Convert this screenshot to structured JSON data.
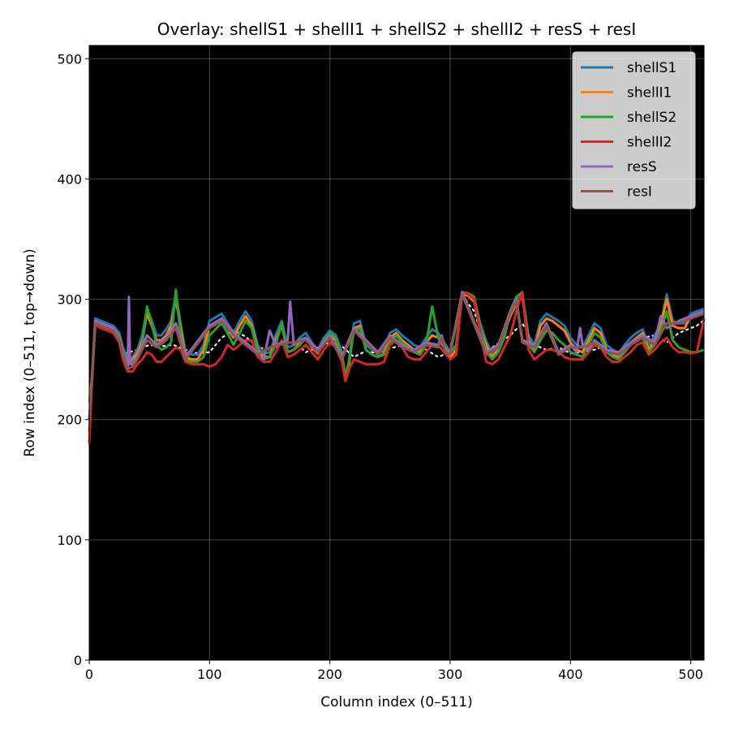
{
  "chart_data": {
    "type": "line",
    "title": "Overlay: shellS1 + shellI1 + shellS2 + shellI2 + resS + resI",
    "xlabel": "Column index (0–511)",
    "ylabel": "Row index (0–511, top→down)",
    "xlim": [
      0,
      511
    ],
    "ylim": [
      0,
      511
    ],
    "xticks": [
      0,
      100,
      200,
      300,
      400,
      500
    ],
    "yticks": [
      0,
      100,
      200,
      300,
      400,
      500
    ],
    "grid": true,
    "background": "#000000",
    "legend": {
      "location": "top-right"
    },
    "white_trace": {
      "x": [
        5,
        20,
        30,
        40,
        50,
        60,
        70,
        80,
        90,
        100,
        110,
        120,
        130,
        140,
        150,
        160,
        170,
        180,
        190,
        200,
        210,
        220,
        230,
        240,
        250,
        260,
        270,
        280,
        290,
        300,
        310,
        320,
        330,
        340,
        350,
        360,
        370,
        380,
        390,
        400,
        410,
        420,
        430,
        440,
        450,
        460,
        470,
        480,
        490,
        500,
        505,
        510
      ],
      "y": [
        280,
        276,
        255,
        258,
        262,
        261,
        262,
        258,
        255,
        256,
        268,
        274,
        269,
        260,
        258,
        262,
        265,
        256,
        260,
        264,
        261,
        252,
        257,
        255,
        259,
        262,
        258,
        258,
        252,
        256,
        303,
        290,
        257,
        263,
        270,
        280,
        262,
        258,
        260,
        255,
        256,
        258,
        262,
        255,
        264,
        268,
        270,
        264,
        272,
        276,
        278,
        282
      ]
    },
    "series": [
      {
        "name": "shellS1",
        "color": "#1f77b4",
        "x": [
          0,
          2,
          5,
          10,
          15,
          20,
          25,
          28,
          32,
          36,
          40,
          44,
          48,
          52,
          56,
          60,
          64,
          68,
          72,
          76,
          80,
          85,
          90,
          95,
          100,
          105,
          110,
          115,
          120,
          125,
          130,
          135,
          140,
          145,
          150,
          155,
          160,
          165,
          170,
          175,
          180,
          185,
          190,
          195,
          200,
          205,
          210,
          213,
          216,
          220,
          225,
          230,
          235,
          240,
          245,
          250,
          255,
          260,
          265,
          270,
          275,
          280,
          285,
          290,
          295,
          300,
          305,
          310,
          315,
          320,
          325,
          330,
          335,
          340,
          345,
          350,
          355,
          360,
          365,
          370,
          375,
          380,
          385,
          390,
          395,
          400,
          405,
          410,
          415,
          420,
          425,
          430,
          435,
          440,
          445,
          450,
          455,
          460,
          465,
          470,
          475,
          480,
          485,
          490,
          495,
          500,
          505,
          511
        ],
        "y": [
          200,
          230,
          284,
          282,
          280,
          278,
          272,
          260,
          250,
          252,
          258,
          270,
          292,
          282,
          270,
          270,
          275,
          282,
          305,
          280,
          256,
          254,
          254,
          262,
          282,
          285,
          288,
          280,
          272,
          282,
          290,
          282,
          262,
          255,
          256,
          270,
          282,
          260,
          262,
          268,
          272,
          264,
          258,
          268,
          274,
          270,
          256,
          235,
          250,
          280,
          282,
          262,
          258,
          255,
          258,
          272,
          275,
          270,
          266,
          262,
          260,
          268,
          275,
          272,
          264,
          256,
          262,
          306,
          305,
          300,
          280,
          265,
          255,
          262,
          275,
          290,
          300,
          305,
          270,
          262,
          282,
          288,
          285,
          282,
          278,
          268,
          262,
          260,
          270,
          280,
          276,
          262,
          258,
          255,
          262,
          268,
          272,
          275,
          262,
          270,
          280,
          304,
          282,
          280,
          280,
          288,
          290,
          292
        ]
      },
      {
        "name": "shellI1",
        "color": "#ff7f0e",
        "x": [
          0,
          2,
          5,
          10,
          15,
          20,
          25,
          28,
          32,
          36,
          40,
          44,
          48,
          52,
          56,
          60,
          64,
          68,
          72,
          76,
          80,
          85,
          90,
          95,
          100,
          105,
          110,
          115,
          120,
          125,
          130,
          135,
          140,
          145,
          150,
          155,
          160,
          165,
          170,
          175,
          180,
          185,
          190,
          195,
          200,
          205,
          210,
          213,
          216,
          220,
          225,
          230,
          235,
          240,
          245,
          250,
          255,
          260,
          265,
          270,
          275,
          280,
          285,
          290,
          295,
          300,
          305,
          310,
          315,
          320,
          325,
          330,
          335,
          340,
          345,
          350,
          355,
          360,
          365,
          370,
          375,
          380,
          385,
          390,
          395,
          400,
          405,
          410,
          415,
          420,
          425,
          430,
          435,
          440,
          445,
          450,
          455,
          460,
          465,
          470,
          475,
          480,
          485,
          490,
          495,
          500,
          505,
          511
        ],
        "y": [
          215,
          232,
          280,
          278,
          276,
          275,
          268,
          257,
          248,
          250,
          255,
          265,
          288,
          278,
          266,
          266,
          270,
          278,
          300,
          276,
          252,
          250,
          250,
          258,
          278,
          280,
          284,
          276,
          268,
          278,
          286,
          278,
          258,
          252,
          252,
          266,
          278,
          256,
          258,
          264,
          268,
          260,
          255,
          264,
          270,
          266,
          252,
          232,
          246,
          276,
          278,
          258,
          254,
          252,
          255,
          268,
          272,
          266,
          262,
          258,
          256,
          264,
          270,
          268,
          260,
          252,
          258,
          304,
          303,
          298,
          276,
          262,
          252,
          258,
          272,
          286,
          296,
          302,
          266,
          258,
          278,
          284,
          282,
          278,
          274,
          264,
          258,
          256,
          266,
          276,
          272,
          258,
          254,
          252,
          258,
          264,
          268,
          272,
          258,
          266,
          278,
          300,
          278,
          276,
          276,
          286,
          286,
          288
        ]
      },
      {
        "name": "shellS2",
        "color": "#2ca02c",
        "x": [
          0,
          2,
          5,
          10,
          15,
          20,
          25,
          28,
          32,
          36,
          40,
          44,
          48,
          52,
          56,
          60,
          64,
          68,
          72,
          76,
          80,
          85,
          90,
          95,
          100,
          105,
          110,
          115,
          120,
          125,
          130,
          135,
          140,
          145,
          150,
          155,
          160,
          165,
          170,
          175,
          180,
          185,
          190,
          195,
          200,
          205,
          210,
          213,
          216,
          220,
          225,
          230,
          235,
          240,
          245,
          250,
          255,
          260,
          265,
          270,
          275,
          280,
          285,
          290,
          295,
          300,
          305,
          310,
          315,
          320,
          325,
          330,
          335,
          340,
          345,
          350,
          355,
          360,
          365,
          370,
          375,
          380,
          385,
          390,
          395,
          400,
          405,
          410,
          415,
          420,
          425,
          430,
          435,
          440,
          445,
          450,
          455,
          460,
          465,
          470,
          475,
          480,
          485,
          490,
          495,
          500,
          505,
          511
        ],
        "y": [
          190,
          228,
          282,
          280,
          278,
          276,
          270,
          258,
          246,
          248,
          252,
          262,
          294,
          280,
          262,
          258,
          260,
          264,
          308,
          270,
          250,
          248,
          248,
          252,
          270,
          275,
          280,
          272,
          262,
          272,
          282,
          276,
          256,
          250,
          252,
          262,
          280,
          256,
          258,
          262,
          268,
          262,
          256,
          266,
          272,
          268,
          254,
          236,
          248,
          274,
          276,
          258,
          254,
          252,
          254,
          264,
          270,
          264,
          260,
          256,
          254,
          262,
          294,
          268,
          262,
          256,
          260,
          306,
          305,
          302,
          278,
          256,
          250,
          256,
          268,
          290,
          302,
          306,
          262,
          256,
          266,
          274,
          272,
          266,
          262,
          256,
          254,
          252,
          262,
          272,
          268,
          256,
          252,
          250,
          256,
          262,
          266,
          268,
          256,
          262,
          274,
          290,
          266,
          260,
          258,
          256,
          256,
          258
        ]
      },
      {
        "name": "shellI2",
        "color": "#d62728",
        "x": [
          0,
          2,
          5,
          10,
          15,
          20,
          25,
          28,
          32,
          36,
          40,
          44,
          48,
          52,
          56,
          60,
          64,
          68,
          72,
          76,
          80,
          85,
          90,
          95,
          100,
          105,
          110,
          115,
          120,
          125,
          130,
          135,
          140,
          145,
          150,
          155,
          160,
          165,
          170,
          175,
          180,
          185,
          190,
          195,
          200,
          205,
          210,
          213,
          216,
          220,
          225,
          230,
          235,
          240,
          245,
          250,
          255,
          260,
          265,
          270,
          275,
          280,
          285,
          290,
          295,
          300,
          305,
          310,
          315,
          320,
          325,
          330,
          335,
          340,
          345,
          350,
          355,
          360,
          365,
          370,
          375,
          380,
          385,
          390,
          395,
          400,
          405,
          410,
          415,
          420,
          425,
          430,
          435,
          440,
          445,
          450,
          455,
          460,
          465,
          470,
          475,
          480,
          485,
          490,
          495,
          500,
          505,
          511
        ],
        "y": [
          180,
          226,
          278,
          276,
          274,
          272,
          264,
          250,
          240,
          240,
          246,
          250,
          256,
          254,
          248,
          248,
          252,
          256,
          260,
          258,
          248,
          246,
          246,
          246,
          244,
          246,
          252,
          262,
          258,
          262,
          266,
          266,
          252,
          248,
          248,
          256,
          266,
          252,
          254,
          258,
          262,
          256,
          250,
          258,
          264,
          260,
          248,
          232,
          242,
          250,
          248,
          246,
          246,
          246,
          248,
          262,
          266,
          260,
          252,
          250,
          250,
          256,
          262,
          262,
          256,
          250,
          254,
          306,
          304,
          300,
          272,
          248,
          246,
          250,
          260,
          270,
          290,
          306,
          258,
          250,
          254,
          258,
          258,
          256,
          252,
          250,
          250,
          250,
          256,
          262,
          260,
          252,
          248,
          248,
          252,
          256,
          262,
          264,
          254,
          258,
          264,
          268,
          260,
          256,
          256,
          255,
          256,
          284
        ]
      },
      {
        "name": "resS",
        "color": "#9467bd",
        "x": [
          0,
          2,
          5,
          10,
          15,
          20,
          25,
          28,
          32,
          33,
          34,
          36,
          40,
          48,
          56,
          64,
          72,
          80,
          100,
          110,
          120,
          140,
          145,
          150,
          155,
          165,
          167,
          170,
          175,
          180,
          190,
          200,
          210,
          220,
          240,
          250,
          260,
          270,
          280,
          290,
          293,
          296,
          300,
          310,
          330,
          340,
          350,
          355,
          360,
          370,
          380,
          390,
          400,
          405,
          408,
          410,
          415,
          420,
          430,
          440,
          450,
          460,
          470,
          475,
          480,
          490,
          500,
          511
        ],
        "y": [
          200,
          228,
          282,
          280,
          278,
          276,
          268,
          256,
          244,
          302,
          246,
          246,
          252,
          270,
          262,
          268,
          280,
          252,
          278,
          284,
          272,
          256,
          250,
          274,
          262,
          266,
          298,
          262,
          266,
          268,
          258,
          270,
          252,
          276,
          256,
          270,
          262,
          258,
          264,
          262,
          270,
          258,
          256,
          306,
          256,
          262,
          290,
          300,
          266,
          262,
          280,
          256,
          262,
          256,
          276,
          262,
          258,
          266,
          258,
          256,
          264,
          270,
          264,
          286,
          276,
          282,
          286,
          290
        ]
      },
      {
        "name": "resI",
        "color": "#8c564b",
        "x": [
          0,
          2,
          5,
          10,
          15,
          20,
          25,
          28,
          32,
          36,
          40,
          48,
          56,
          64,
          72,
          80,
          100,
          110,
          120,
          140,
          150,
          165,
          170,
          180,
          190,
          200,
          210,
          220,
          240,
          250,
          260,
          270,
          280,
          290,
          293,
          296,
          300,
          310,
          330,
          340,
          350,
          355,
          360,
          370,
          380,
          390,
          400,
          410,
          420,
          430,
          440,
          450,
          460,
          470,
          480,
          490,
          500,
          511
        ],
        "y": [
          200,
          226,
          280,
          278,
          276,
          274,
          266,
          254,
          242,
          244,
          250,
          266,
          260,
          266,
          276,
          250,
          276,
          282,
          270,
          254,
          260,
          264,
          264,
          266,
          256,
          268,
          250,
          274,
          254,
          268,
          260,
          256,
          262,
          260,
          268,
          256,
          254,
          304,
          254,
          260,
          288,
          298,
          264,
          260,
          278,
          254,
          260,
          260,
          264,
          256,
          254,
          262,
          268,
          262,
          280,
          280,
          284,
          288
        ]
      }
    ]
  }
}
